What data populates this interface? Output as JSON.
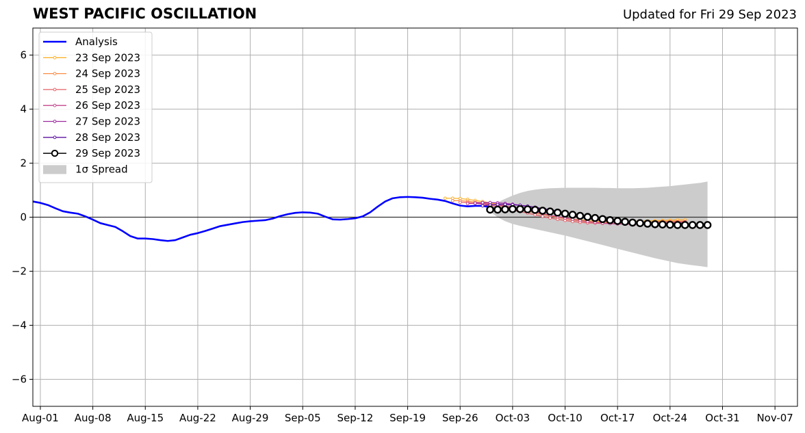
{
  "header": {
    "title": "WEST PACIFIC OSCILLATION",
    "updated": "Updated for Fri 29 Sep 2023"
  },
  "chart_data": {
    "type": "line",
    "title": "WEST PACIFIC OSCILLATION",
    "subtitle": "Updated for Fri 29 Sep 2023",
    "xlabel": "",
    "ylabel": "",
    "xlim": [
      "2023-07-31",
      "2023-11-10"
    ],
    "ylim": [
      -7,
      7
    ],
    "grid": true,
    "legend_position": "top-left",
    "x_ticks": [
      {
        "date": "2023-08-01",
        "label": "Aug-01"
      },
      {
        "date": "2023-08-08",
        "label": "Aug-08"
      },
      {
        "date": "2023-08-15",
        "label": "Aug-15"
      },
      {
        "date": "2023-08-22",
        "label": "Aug-22"
      },
      {
        "date": "2023-08-29",
        "label": "Aug-29"
      },
      {
        "date": "2023-09-05",
        "label": "Sep-05"
      },
      {
        "date": "2023-09-12",
        "label": "Sep-12"
      },
      {
        "date": "2023-09-19",
        "label": "Sep-19"
      },
      {
        "date": "2023-09-26",
        "label": "Sep-26"
      },
      {
        "date": "2023-10-03",
        "label": "Oct-03"
      },
      {
        "date": "2023-10-10",
        "label": "Oct-10"
      },
      {
        "date": "2023-10-17",
        "label": "Oct-17"
      },
      {
        "date": "2023-10-24",
        "label": "Oct-24"
      },
      {
        "date": "2023-10-31",
        "label": "Oct-31"
      },
      {
        "date": "2023-11-07",
        "label": "Nov-07"
      }
    ],
    "y_ticks": [
      {
        "value": 6,
        "label": "6"
      },
      {
        "value": 4,
        "label": "4"
      },
      {
        "value": 2,
        "label": "2"
      },
      {
        "value": 0,
        "label": "0"
      },
      {
        "value": -2,
        "label": "−2"
      },
      {
        "value": -4,
        "label": "−4"
      },
      {
        "value": -6,
        "label": "−6"
      }
    ],
    "analysis": {
      "name": "Analysis",
      "color": "#0000ff",
      "start": "2023-07-31",
      "values": [
        0.58,
        0.53,
        0.45,
        0.33,
        0.22,
        0.17,
        0.13,
        0.03,
        -0.09,
        -0.22,
        -0.29,
        -0.36,
        -0.52,
        -0.7,
        -0.79,
        -0.79,
        -0.81,
        -0.85,
        -0.88,
        -0.85,
        -0.75,
        -0.65,
        -0.59,
        -0.51,
        -0.42,
        -0.33,
        -0.28,
        -0.23,
        -0.18,
        -0.15,
        -0.13,
        -0.11,
        -0.05,
        0.04,
        0.11,
        0.16,
        0.18,
        0.17,
        0.13,
        0.02,
        -0.08,
        -0.09,
        -0.07,
        -0.04,
        0.03,
        0.18,
        0.39,
        0.58,
        0.7,
        0.74,
        0.75,
        0.74,
        0.72,
        0.68,
        0.65,
        0.6,
        0.51,
        0.43,
        0.4,
        0.42,
        0.42,
        0.37,
        0.28
      ]
    },
    "forecasts": [
      {
        "name": "23 Sep 2023",
        "color": "#fbb12a",
        "start": "2023-09-24",
        "values": [
          0.7,
          0.7,
          0.69,
          0.66,
          0.62,
          0.58,
          0.53,
          0.48,
          0.42,
          0.36,
          0.3,
          0.24,
          0.18,
          0.12,
          0.06,
          0.01,
          -0.03,
          -0.07,
          -0.1,
          -0.13,
          -0.15,
          -0.17,
          -0.18,
          -0.18,
          -0.17,
          -0.16,
          -0.15,
          -0.14,
          -0.13,
          -0.12,
          -0.11,
          -0.1,
          -0.1
        ]
      },
      {
        "name": "24 Sep 2023",
        "color": "#f98a42",
        "start": "2023-09-25",
        "values": [
          0.61,
          0.61,
          0.59,
          0.56,
          0.53,
          0.49,
          0.44,
          0.39,
          0.34,
          0.28,
          0.22,
          0.16,
          0.1,
          0.04,
          -0.01,
          -0.06,
          -0.1,
          -0.14,
          -0.17,
          -0.19,
          -0.2,
          -0.21,
          -0.21,
          -0.2,
          -0.19,
          -0.18,
          -0.17,
          -0.16,
          -0.15,
          -0.15,
          -0.15,
          -0.15
        ]
      },
      {
        "name": "25 Sep 2023",
        "color": "#e55f67",
        "start": "2023-09-26",
        "values": [
          0.55,
          0.54,
          0.52,
          0.48,
          0.44,
          0.39,
          0.33,
          0.27,
          0.21,
          0.15,
          0.09,
          0.03,
          -0.03,
          -0.08,
          -0.12,
          -0.16,
          -0.19,
          -0.21,
          -0.22,
          -0.23,
          -0.23,
          -0.23,
          -0.22,
          -0.21,
          -0.2,
          -0.19,
          -0.18,
          -0.17,
          -0.17,
          -0.17,
          -0.17
        ]
      },
      {
        "name": "26 Sep 2023",
        "color": "#c3448e",
        "start": "2023-09-27",
        "values": [
          0.5,
          0.51,
          0.5,
          0.48,
          0.45,
          0.41,
          0.36,
          0.31,
          0.25,
          0.19,
          0.13,
          0.07,
          0.02,
          -0.03,
          -0.08,
          -0.12,
          -0.16,
          -0.19,
          -0.22,
          -0.24,
          -0.25,
          -0.26,
          -0.26,
          -0.25,
          -0.24,
          -0.23,
          -0.22,
          -0.21,
          -0.2,
          -0.19
        ]
      },
      {
        "name": "27 Sep 2023",
        "color": "#9c27a0",
        "start": "2023-09-28",
        "values": [
          0.52,
          0.54,
          0.54,
          0.53,
          0.51,
          0.48,
          0.44,
          0.39,
          0.34,
          0.28,
          0.22,
          0.16,
          0.1,
          0.05,
          0.0,
          -0.05,
          -0.09,
          -0.13,
          -0.16,
          -0.19,
          -0.21,
          -0.23,
          -0.24,
          -0.25,
          -0.25,
          -0.24,
          -0.23,
          -0.22,
          -0.21
        ]
      },
      {
        "name": "28 Sep 2023",
        "color": "#5c0fa0",
        "start": "2023-09-29",
        "values": [
          0.42,
          0.45,
          0.47,
          0.47,
          0.46,
          0.44,
          0.41,
          0.37,
          0.32,
          0.27,
          0.22,
          0.16,
          0.11,
          0.06,
          0.01,
          -0.04,
          -0.08,
          -0.12,
          -0.16,
          -0.19,
          -0.21,
          -0.23,
          -0.24,
          -0.25,
          -0.25,
          -0.25,
          -0.24,
          -0.23
        ]
      }
    ],
    "main_forecast": {
      "name": "29 Sep 2023",
      "color": "#000000",
      "start": "2023-09-30",
      "values": [
        0.28,
        0.28,
        0.29,
        0.3,
        0.3,
        0.29,
        0.27,
        0.24,
        0.21,
        0.17,
        0.13,
        0.09,
        0.05,
        0.01,
        -0.03,
        -0.07,
        -0.11,
        -0.14,
        -0.17,
        -0.2,
        -0.22,
        -0.24,
        -0.26,
        -0.27,
        -0.28,
        -0.29,
        -0.29,
        -0.29,
        -0.29,
        -0.29
      ]
    },
    "spread": {
      "name": "1σ Spread",
      "color": "#cccccc",
      "start": "2023-09-30",
      "upper": [
        0.35,
        0.55,
        0.68,
        0.8,
        0.9,
        0.97,
        1.02,
        1.05,
        1.07,
        1.08,
        1.09,
        1.09,
        1.09,
        1.09,
        1.09,
        1.08,
        1.08,
        1.07,
        1.07,
        1.07,
        1.08,
        1.09,
        1.11,
        1.13,
        1.15,
        1.18,
        1.21,
        1.24,
        1.27,
        1.32
      ],
      "lower": [
        0.2,
        0.0,
        -0.15,
        -0.25,
        -0.32,
        -0.38,
        -0.44,
        -0.5,
        -0.56,
        -0.62,
        -0.68,
        -0.75,
        -0.82,
        -0.89,
        -0.96,
        -1.03,
        -1.1,
        -1.17,
        -1.24,
        -1.31,
        -1.38,
        -1.45,
        -1.52,
        -1.58,
        -1.64,
        -1.7,
        -1.74,
        -1.78,
        -1.81,
        -1.85
      ]
    }
  }
}
